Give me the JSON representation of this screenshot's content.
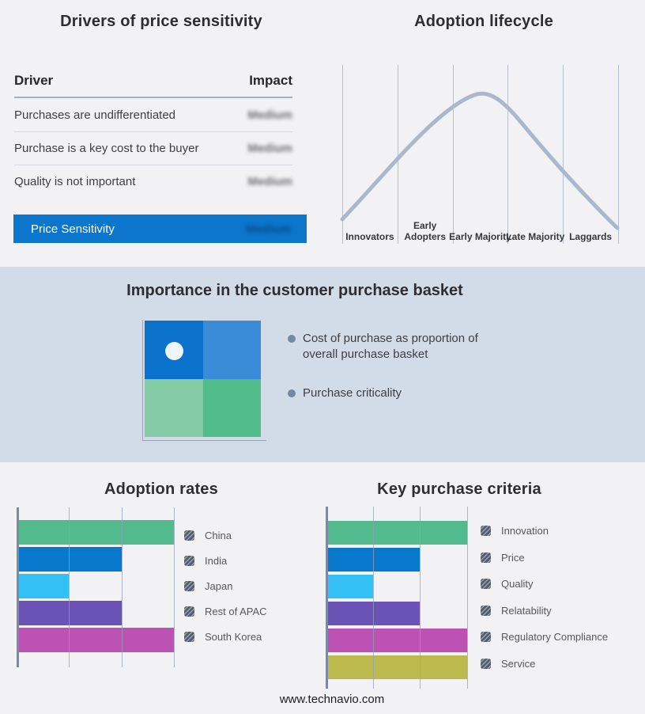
{
  "colors": {
    "page_bg": "#f2f2f4",
    "band_bg": "#d2dce9",
    "accent_blue": "#0b76cc",
    "curve": "#a9b8cd",
    "gridline": "#b6bfd1",
    "axis": "#7b8aa1",
    "legend_swatch_base": "#525c6b",
    "legend_swatch_stripe": "#99a1ad",
    "bullet_dot": "#7189a5"
  },
  "drivers_panel": {
    "title": "Drivers of price sensitivity",
    "columns": [
      "Driver",
      "Impact"
    ],
    "rows": [
      {
        "driver": "Purchases are undifferentiated",
        "impact": "Medium",
        "impact_blurred": true
      },
      {
        "driver": "Purchase is a key cost to the buyer",
        "impact": "Medium",
        "impact_blurred": true
      },
      {
        "driver": "Quality is not important",
        "impact": "Medium",
        "impact_blurred": true
      }
    ],
    "summary_row": {
      "label": "Price Sensitivity",
      "impact": "Medium",
      "impact_blurred": true
    }
  },
  "lifecycle_panel": {
    "title": "Adoption lifecycle",
    "stages": [
      "Innovators",
      "Early Adopters",
      "Early Majority",
      "Late Majority",
      "Laggards"
    ]
  },
  "basket_panel": {
    "title": "Importance in the customer purchase basket",
    "bullets": [
      "Cost of purchase as proportion of overall purchase basket",
      "Purchase criticality"
    ],
    "quadrant": {
      "top_left": "#0b72cc",
      "top_right": "#3b8cd8",
      "bottom_left": "#85cba6",
      "bottom_right": "#52bd8b",
      "marker": "#eef5fb"
    }
  },
  "chart_data": [
    {
      "type": "bar",
      "orientation": "horizontal",
      "title": "Adoption rates",
      "categories": [
        "China",
        "India",
        "Japan",
        "Rest of APAC",
        "South Korea"
      ],
      "values": [
        3,
        2,
        1,
        2,
        3
      ],
      "colors": [
        "#52ba8c",
        "#0878cc",
        "#33c1f5",
        "#6a53b5",
        "#bd52b5"
      ],
      "xlim": [
        0,
        3
      ],
      "grid": true,
      "axis_labels_shown": false,
      "legend_position": "right"
    },
    {
      "type": "bar",
      "orientation": "horizontal",
      "title": "Key purchase criteria",
      "categories": [
        "Innovation",
        "Price",
        "Quality",
        "Relatability",
        "Regulatory Compliance",
        "Service"
      ],
      "values": [
        3,
        2,
        1,
        2,
        3,
        3
      ],
      "colors": [
        "#52ba8c",
        "#0878cc",
        "#33c1f5",
        "#6a53b5",
        "#bd52b5",
        "#bcba4d"
      ],
      "xlim": [
        0,
        3
      ],
      "grid": true,
      "axis_labels_shown": false,
      "legend_position": "right"
    }
  ],
  "footer": {
    "url": "www.technavio.com"
  }
}
